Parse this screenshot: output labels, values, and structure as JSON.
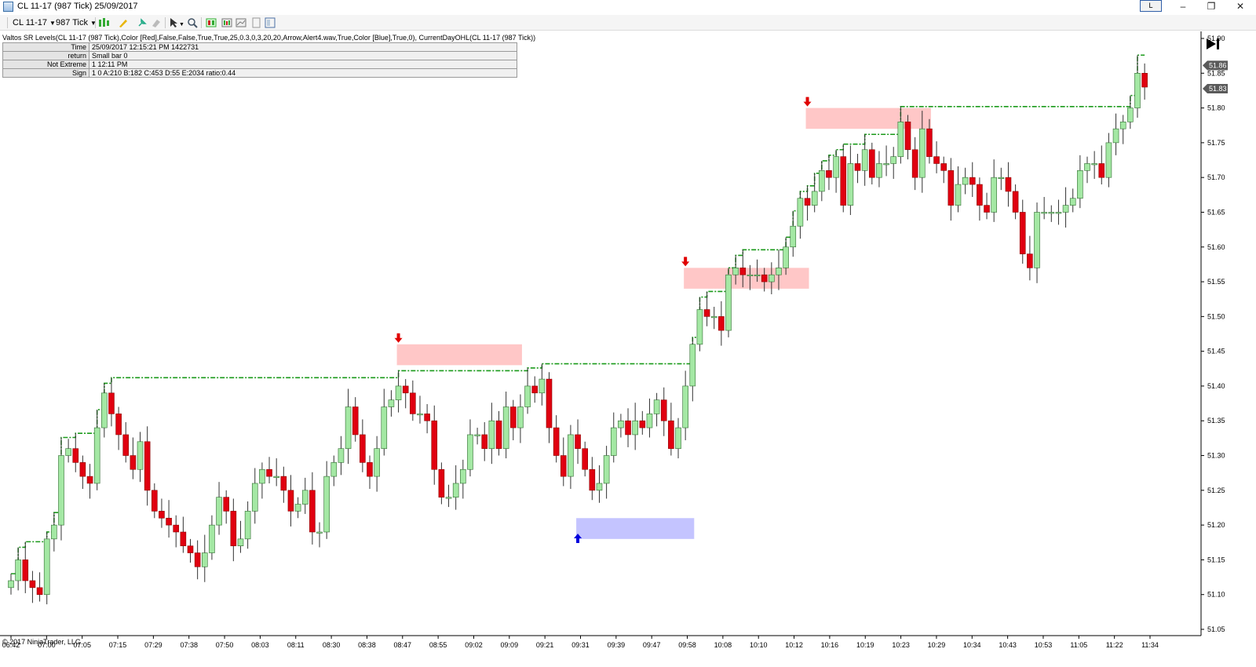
{
  "window": {
    "title": "CL 11-17 (987 Tick)  25/09/2017",
    "link_label": "L",
    "controls": {
      "minimize": "–",
      "maximize": "❐",
      "close": "✕"
    }
  },
  "toolbar": {
    "instrument": "CL 11-17",
    "interval": "987 Tick",
    "icons": [
      "bar-type-icon",
      "drawing-tool-icon",
      "pin-icon",
      "eraser-icon",
      "cursor-icon",
      "zoom-icon",
      "strategies-icon",
      "indicators-icon",
      "data-box-icon",
      "properties-icon",
      "template-icon"
    ]
  },
  "indicator_label": "Valtos SR Levels(CL 11-17 (987 Tick),Color [Red],False,False,True,True,25,0.3,0,3,20,20,Arrow,Alert4.wav,True,Color [Blue],True,0), CurrentDayOHL(CL 11-17 (987 Tick))",
  "data_box": [
    {
      "key": "Time",
      "value": "25/09/2017 12:15:21 PM 1422731"
    },
    {
      "key": "return",
      "value": "Small bar 0"
    },
    {
      "key": "Not Extreme",
      "value": "1 12:11 PM"
    },
    {
      "key": "Sign",
      "value": "1 0 A:210 B:182 C:453 D:55 E:2034 ratio:0.44"
    }
  ],
  "copyright": "© 2017 NinjaTrader, LLC",
  "colors": {
    "up": "#a4e8a4",
    "up_border": "#2f6b2f",
    "down": "#e00010",
    "resistance_zone": "#ffc7c7",
    "support_zone": "#c4c4ff",
    "level_line": "#1a9a1a",
    "arrow_down": "#e00000",
    "arrow_up": "#0000dd"
  },
  "chart_data": {
    "type": "candlestick",
    "ylim": [
      51.05,
      51.9
    ],
    "y_ticks": [
      "51.90",
      "51.85",
      "51.80",
      "51.75",
      "51.70",
      "51.65",
      "51.60",
      "51.55",
      "51.50",
      "51.45",
      "51.40",
      "51.35",
      "51.30",
      "51.25",
      "51.20",
      "51.15",
      "51.10",
      "51.05"
    ],
    "x_ticks": [
      "06:42",
      "07:00",
      "07:05",
      "07:15",
      "07:29",
      "07:38",
      "07:50",
      "08:03",
      "08:11",
      "08:30",
      "08:38",
      "08:47",
      "08:55",
      "09:02",
      "09:09",
      "09:21",
      "09:31",
      "09:39",
      "09:47",
      "09:58",
      "10:08",
      "10:10",
      "10:12",
      "10:16",
      "10:19",
      "10:23",
      "10:29",
      "10:34",
      "10:43",
      "10:53",
      "11:05",
      "11:22",
      "11:34"
    ],
    "price_markers": [
      "51.86",
      "51.83"
    ],
    "close": [
      51.12,
      51.15,
      51.12,
      51.11,
      51.1,
      51.18,
      51.2,
      51.3,
      51.31,
      51.29,
      51.27,
      51.26,
      51.34,
      51.39,
      51.36,
      51.33,
      51.3,
      51.28,
      51.32,
      51.25,
      51.22,
      51.21,
      51.2,
      51.19,
      51.17,
      51.16,
      51.14,
      51.16,
      51.2,
      51.24,
      51.22,
      51.17,
      51.18,
      51.22,
      51.26,
      51.28,
      51.27,
      51.27,
      51.25,
      51.22,
      51.23,
      51.25,
      51.19,
      51.19,
      51.27,
      51.29,
      51.31,
      51.37,
      51.33,
      51.29,
      51.27,
      51.31,
      51.37,
      51.38,
      51.4,
      51.39,
      51.36,
      51.36,
      51.35,
      51.28,
      51.24,
      51.24,
      51.26,
      51.28,
      51.33,
      51.33,
      51.31,
      51.35,
      51.31,
      51.37,
      51.34,
      51.37,
      51.4,
      51.39,
      51.41,
      51.34,
      51.3,
      51.27,
      51.33,
      51.31,
      51.28,
      51.25,
      51.26,
      51.3,
      51.34,
      51.35,
      51.33,
      51.35,
      51.34,
      51.36,
      51.38,
      51.35,
      51.31,
      51.34,
      51.4,
      51.46,
      51.51,
      51.5,
      51.5,
      51.48,
      51.56,
      51.57,
      51.56,
      51.56,
      51.56,
      51.55,
      51.56,
      51.57,
      51.6,
      51.63,
      51.67,
      51.66,
      51.68,
      51.71,
      51.7,
      51.73,
      51.66,
      51.72,
      51.71,
      51.74,
      51.7,
      51.72,
      51.72,
      51.73,
      51.78,
      51.74,
      51.7,
      51.77,
      51.73,
      51.72,
      51.71,
      51.66,
      51.69,
      51.7,
      51.69,
      51.66,
      51.65,
      51.7,
      51.7,
      51.68,
      51.65,
      51.59,
      51.57,
      51.65,
      51.65,
      51.65,
      51.65,
      51.66,
      51.67,
      51.71,
      51.72,
      51.72,
      51.7,
      51.75,
      51.77,
      51.78,
      51.8,
      51.85,
      51.83
    ],
    "zones": [
      {
        "kind": "resistance",
        "y_top": 51.46,
        "y_bottom": 51.43,
        "from_bar": 54,
        "to_bar": 71
      },
      {
        "kind": "resistance",
        "y_top": 51.57,
        "y_bottom": 51.54,
        "from_bar": 94,
        "to_bar": 111
      },
      {
        "kind": "resistance",
        "y_top": 51.8,
        "y_bottom": 51.77,
        "from_bar": 111,
        "to_bar": 128
      },
      {
        "kind": "support",
        "y_top": 51.21,
        "y_bottom": 51.18,
        "from_bar": 79,
        "to_bar": 95
      }
    ],
    "arrows": [
      {
        "kind": "down",
        "bar": 54,
        "price": 51.46
      },
      {
        "kind": "down",
        "bar": 94,
        "price": 51.57
      },
      {
        "kind": "down",
        "bar": 111,
        "price": 51.8
      },
      {
        "kind": "up",
        "bar": 79,
        "price": 51.19
      }
    ]
  }
}
